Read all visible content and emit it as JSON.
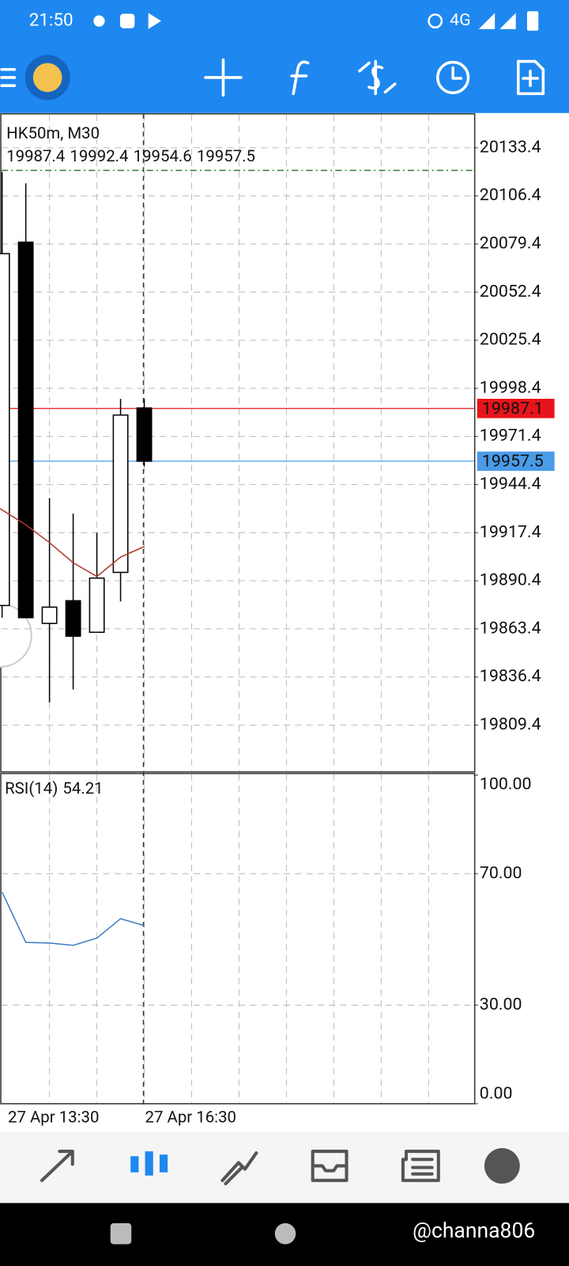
{
  "status_bar": {
    "time": "21:50",
    "network": "4G"
  },
  "chart_data": [
    {
      "type": "candlestick",
      "title": "HK50m, M30",
      "categories": [
        null,
        null,
        "27 Apr 13:30",
        null,
        null,
        null,
        "27 Apr 16:30"
      ],
      "open": [
        19876.5,
        20080.4,
        19866.5,
        19879.2,
        19861.5,
        19895.1,
        19987.4
      ],
      "high": [
        20119.8,
        20113.5,
        19936.8,
        19928.1,
        19917.3,
        19992.5,
        19992.4
      ],
      "low": [
        19869.7,
        19869.7,
        19822.1,
        19829.4,
        19861.5,
        19878.8,
        19954.6
      ],
      "close": [
        20074.0,
        19869.7,
        19875.6,
        19859.3,
        19891.9,
        19983.4,
        19957.5
      ],
      "moving_average": {
        "color": "#b03a2e",
        "values": [
          19930.9,
          19921.8,
          19911.8,
          19900.5,
          19892.8,
          19903.7,
          19909.6
        ]
      },
      "price_lines": [
        {
          "value": 19987.1,
          "color": "#e8141c"
        },
        {
          "value": 19957.5,
          "color": "#4a9be8"
        }
      ],
      "level_line": {
        "value": 20120.7,
        "color": "#2e7d32"
      },
      "ylim": [
        19783.6,
        20152.0
      ],
      "yticks": [
        20133.4,
        20106.4,
        20079.4,
        20052.4,
        20025.4,
        19998.4,
        19971.4,
        19944.4,
        19917.4,
        19890.4,
        19863.4,
        19836.4,
        19809.4
      ],
      "grid": true
    },
    {
      "type": "line",
      "title": "RSI(14)",
      "values": [
        64.4,
        49.1,
        48.9,
        48.2,
        50.4,
        56.3,
        54.21
      ],
      "color": "#3f7fbf",
      "ylim": [
        0,
        100
      ],
      "yticks": [
        {
          "value": 100,
          "label": "100.00"
        },
        {
          "value": 70,
          "label": "70.00"
        },
        {
          "value": 30,
          "label": "30.00"
        },
        {
          "value": 0,
          "label": "0.00"
        }
      ],
      "grid": true
    }
  ],
  "watermark": "@channa806"
}
